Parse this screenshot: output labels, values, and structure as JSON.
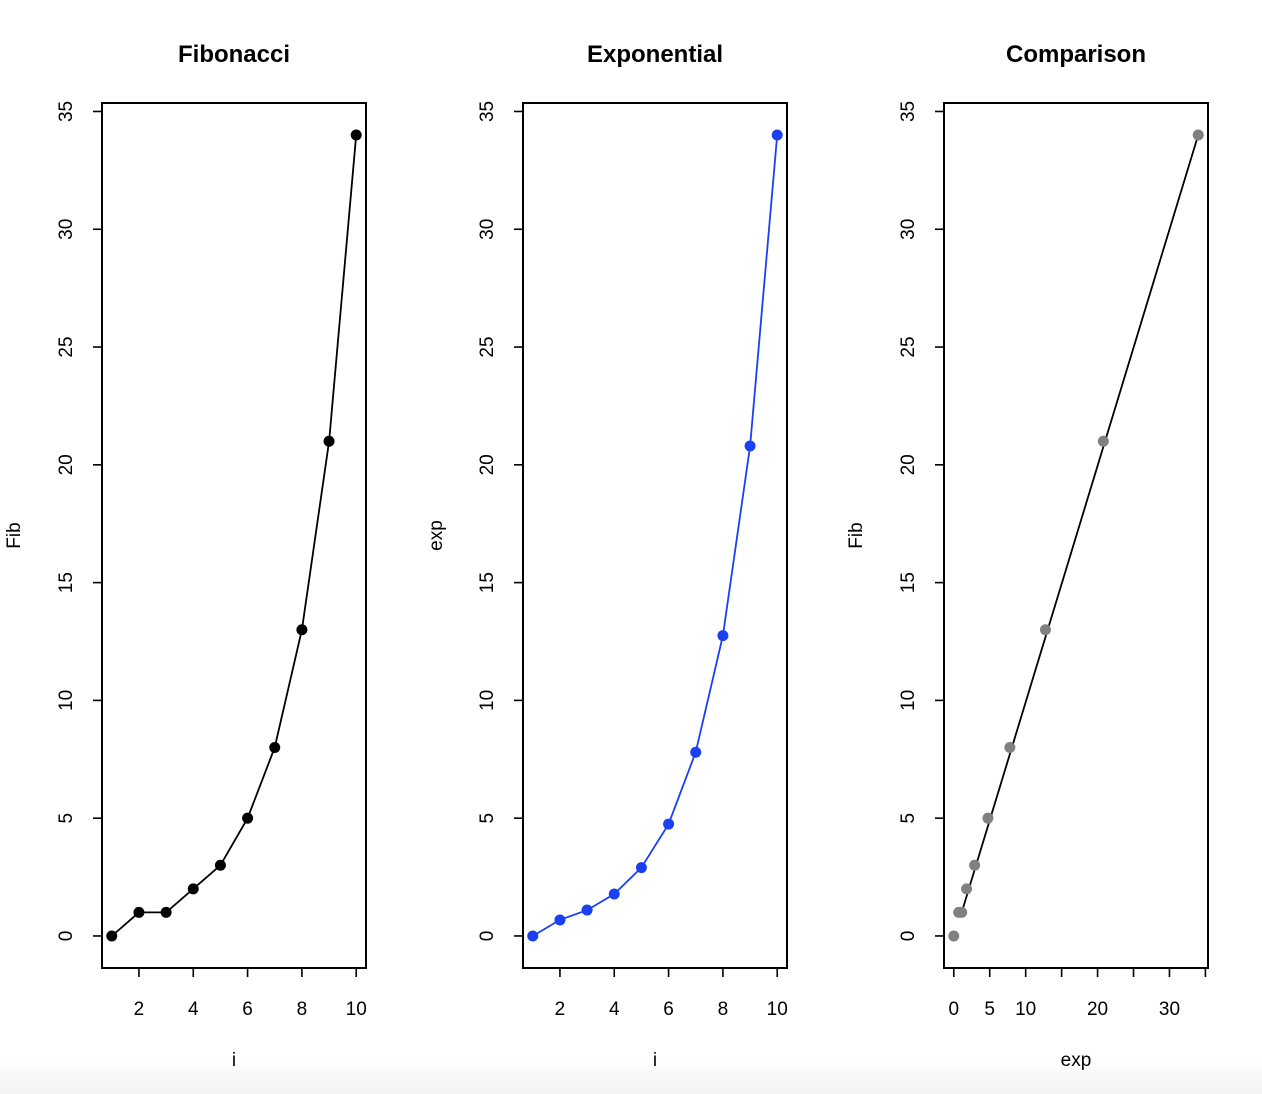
{
  "chart_data": [
    {
      "type": "line",
      "title": "Fibonacci",
      "xlabel": "i",
      "ylabel": "Fib",
      "x": [
        1,
        2,
        3,
        4,
        5,
        6,
        7,
        8,
        9,
        10
      ],
      "series": [
        {
          "values": [
            0,
            1,
            1,
            2,
            3,
            5,
            8,
            13,
            21,
            34
          ],
          "color": "#000000"
        }
      ],
      "xlim": [
        0.64,
        10.36
      ],
      "ylim": [
        -1.36,
        35.36
      ],
      "xticks": [
        2,
        4,
        6,
        8,
        10
      ],
      "yticks": [
        0,
        5,
        10,
        15,
        20,
        25,
        30,
        35
      ],
      "marker": "filled-circle",
      "grid": false
    },
    {
      "type": "line",
      "title": "Exponential",
      "xlabel": "i",
      "ylabel": "exp",
      "x": [
        1,
        2,
        3,
        4,
        5,
        6,
        7,
        8,
        9,
        10
      ],
      "series": [
        {
          "values": [
            0,
            0.68,
            1.1,
            1.78,
            2.9,
            4.75,
            7.8,
            12.75,
            20.8,
            34.0
          ],
          "color": "#1a40f2"
        }
      ],
      "xlim": [
        0.64,
        10.36
      ],
      "ylim": [
        -1.36,
        35.36
      ],
      "xticks": [
        2,
        4,
        6,
        8,
        10
      ],
      "yticks": [
        0,
        5,
        10,
        15,
        20,
        25,
        30,
        35
      ],
      "marker": "filled-circle",
      "grid": false
    },
    {
      "type": "scatter",
      "title": "Comparison",
      "xlabel": "exp",
      "ylabel": "Fib",
      "points": [
        {
          "x": 0,
          "y": 0
        },
        {
          "x": 0.68,
          "y": 1
        },
        {
          "x": 1.1,
          "y": 1
        },
        {
          "x": 1.78,
          "y": 2
        },
        {
          "x": 2.9,
          "y": 3
        },
        {
          "x": 4.75,
          "y": 5
        },
        {
          "x": 7.8,
          "y": 8
        },
        {
          "x": 12.75,
          "y": 13
        },
        {
          "x": 20.8,
          "y": 21
        },
        {
          "x": 34.0,
          "y": 34
        }
      ],
      "point_color": "#808080",
      "fit_line": {
        "x": [
          1.1,
          34.0
        ],
        "y": [
          1,
          34
        ],
        "color": "#000000"
      },
      "xlim": [
        -1.36,
        35.36
      ],
      "ylim": [
        -1.36,
        35.36
      ],
      "xticks": [
        0,
        5,
        10,
        15,
        20,
        25,
        30,
        35
      ],
      "xtick_labels": [
        "0",
        "5",
        "10",
        "",
        "20",
        "",
        "30",
        ""
      ],
      "yticks": [
        0,
        5,
        10,
        15,
        20,
        25,
        30,
        35
      ],
      "grid": false
    }
  ]
}
